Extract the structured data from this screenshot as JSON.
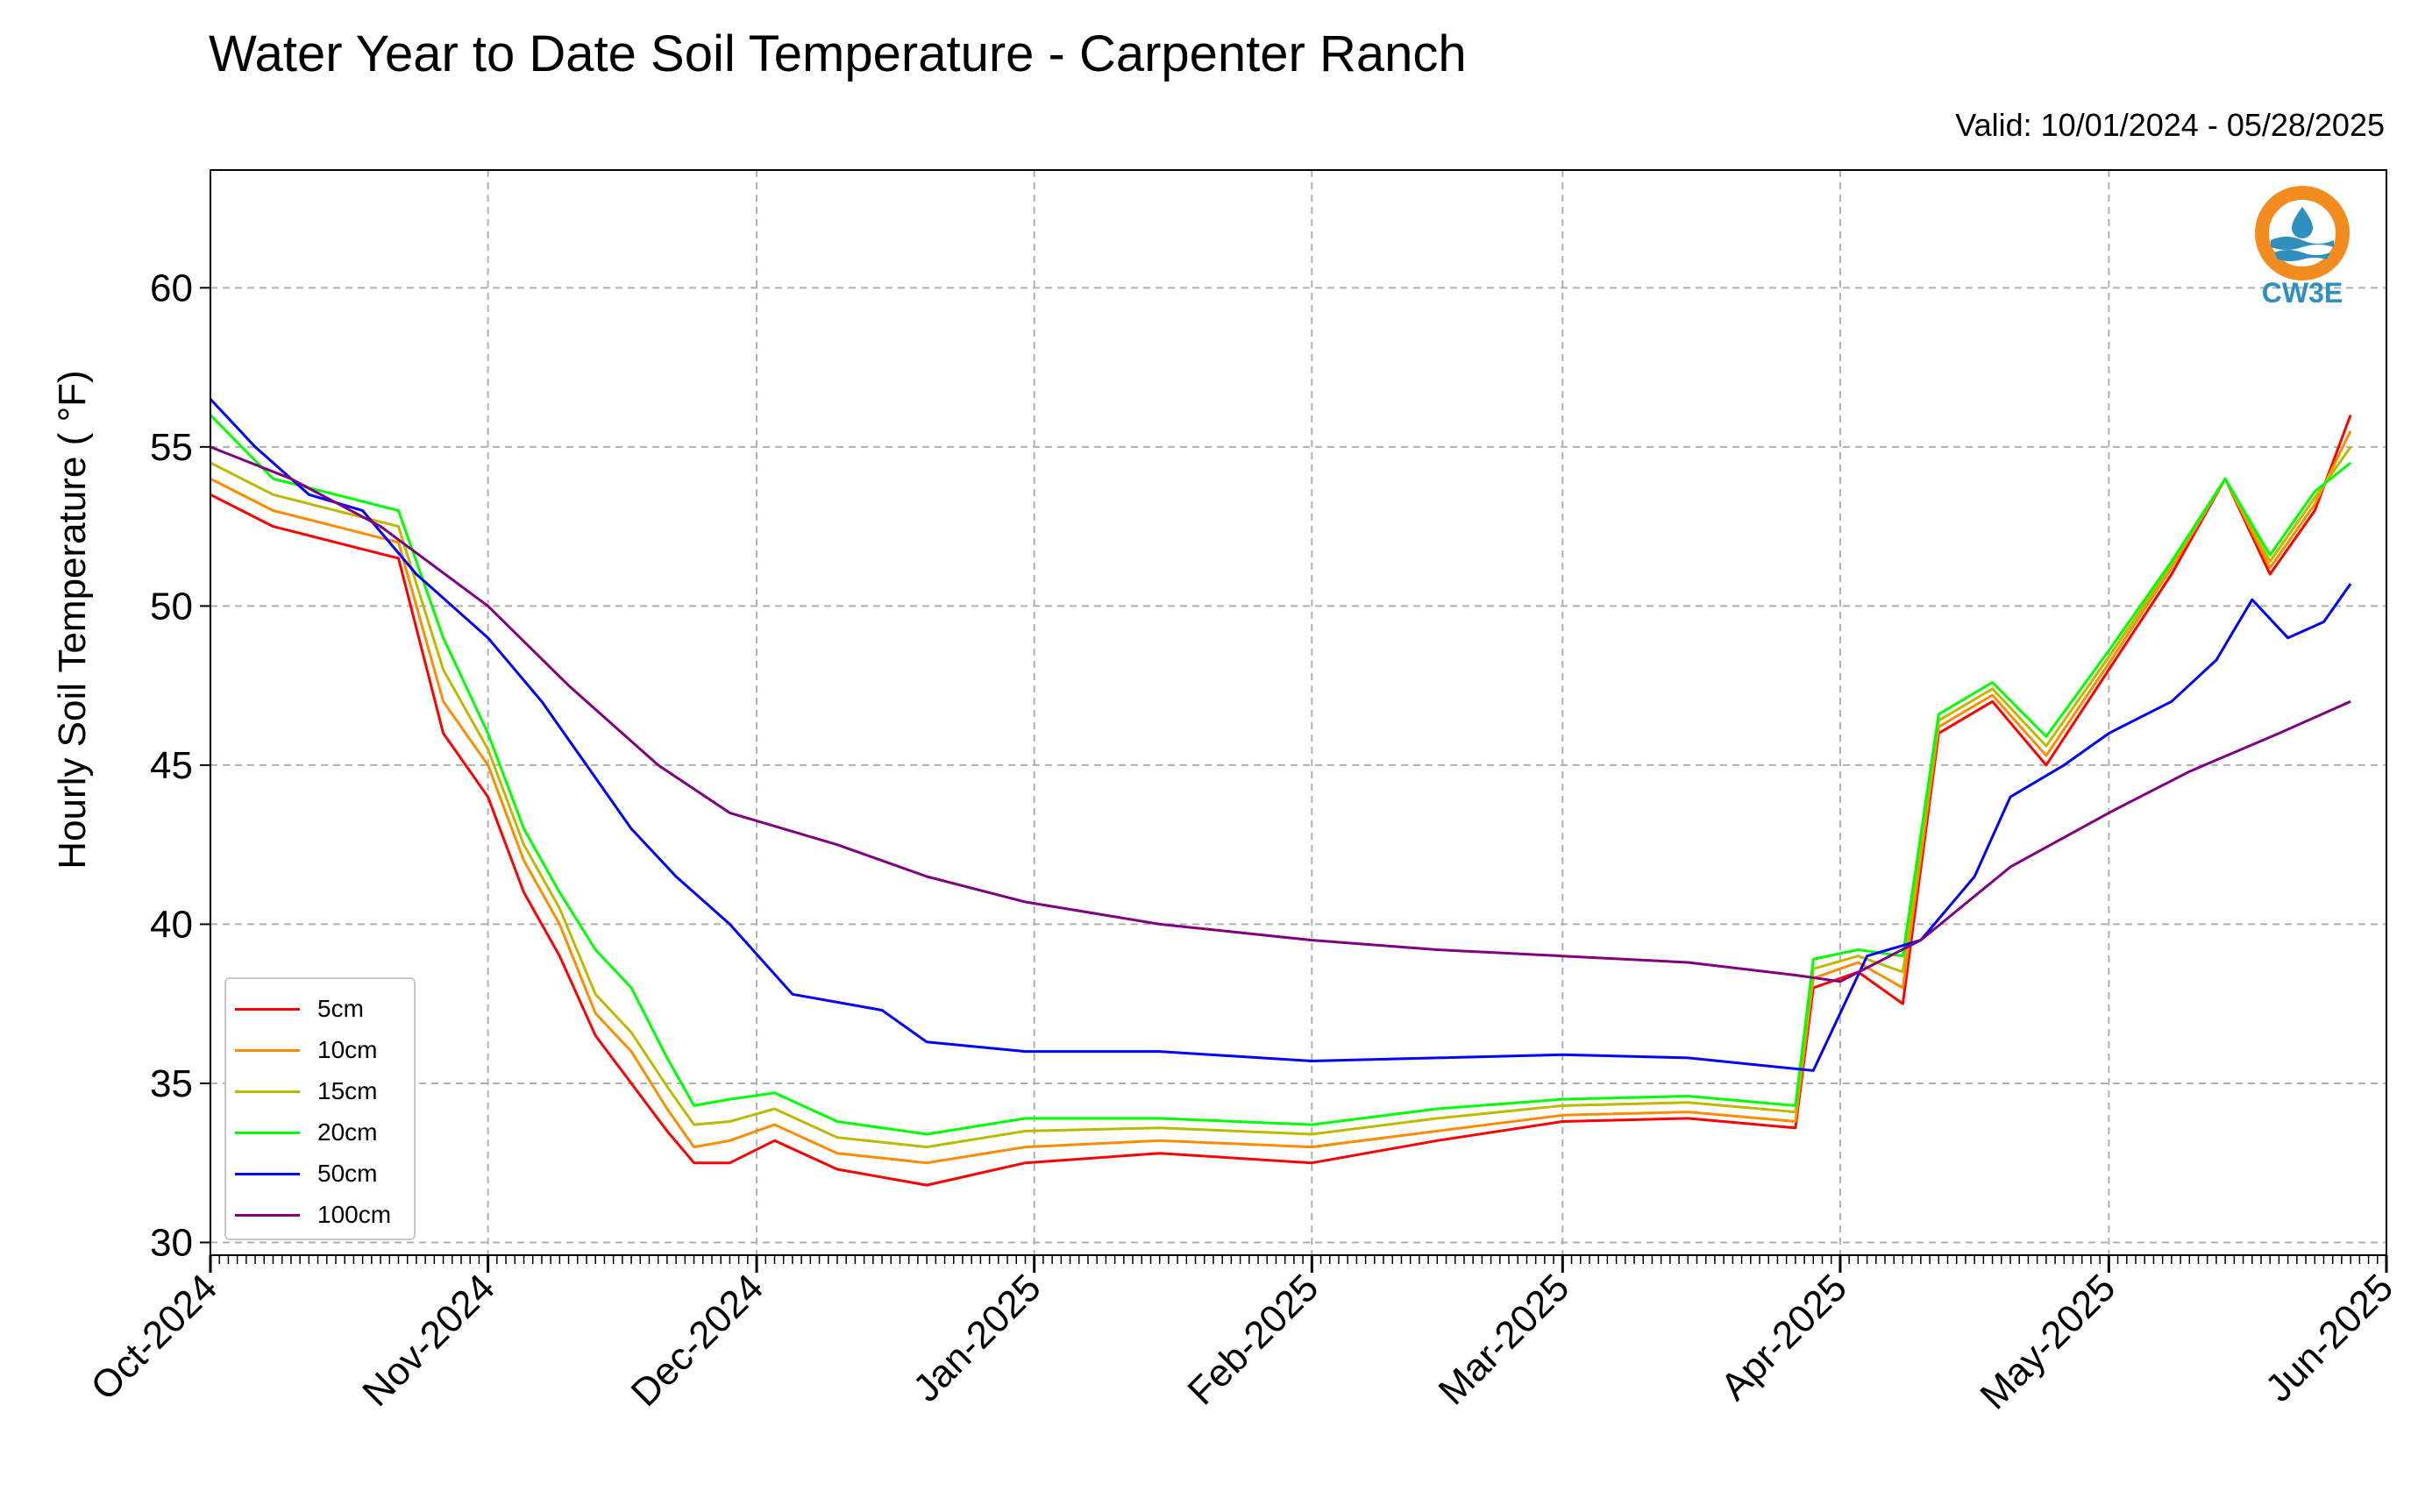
{
  "title": "Water Year to Date Soil Temperature - Carpenter Ranch",
  "valid_text": "Valid: 10/01/2024 - 05/28/2025",
  "logo_text": "CW3E",
  "chart_data": {
    "type": "line",
    "title": "Water Year to Date Soil Temperature - Carpenter Ranch",
    "xlabel": "",
    "ylabel": "Hourly Soil Temperature ( °F)",
    "ylim": [
      29.6,
      63.7
    ],
    "xlim": [
      "2024-10-01",
      "2025-06-01"
    ],
    "y_ticks": [
      30,
      35,
      40,
      45,
      50,
      55,
      60
    ],
    "x_ticks": [
      "2024-10-01",
      "2024-11-01",
      "2024-12-01",
      "2025-01-01",
      "2025-02-01",
      "2025-03-01",
      "2025-04-01",
      "2025-05-01",
      "2025-06-01"
    ],
    "x_tick_labels": [
      "Oct-2024",
      "Nov-2024",
      "Dec-2024",
      "Jan-2025",
      "Feb-2025",
      "Mar-2025",
      "Apr-2025",
      "May-2025",
      "Jun-2025"
    ],
    "grid": true,
    "legend_position": "bottom-left",
    "series": [
      {
        "name": "5cm",
        "color": "#ff0000",
        "x": [
          "2024-10-01",
          "2024-10-08",
          "2024-10-15",
          "2024-10-22",
          "2024-10-27",
          "2024-11-01",
          "2024-11-05",
          "2024-11-09",
          "2024-11-13",
          "2024-11-17",
          "2024-11-21",
          "2024-11-24",
          "2024-11-28",
          "2024-12-03",
          "2024-12-10",
          "2024-12-20",
          "2024-12-31",
          "2025-01-15",
          "2025-02-01",
          "2025-02-15",
          "2025-03-01",
          "2025-03-15",
          "2025-03-27",
          "2025-03-29",
          "2025-04-03",
          "2025-04-08",
          "2025-04-12",
          "2025-04-18",
          "2025-04-24",
          "2025-05-01",
          "2025-05-08",
          "2025-05-14",
          "2025-05-19",
          "2025-05-24",
          "2025-05-28"
        ],
        "y": [
          53.5,
          52.5,
          52,
          51.5,
          46,
          44,
          41,
          39,
          36.5,
          35,
          33.5,
          32.5,
          32.5,
          33.2,
          32.3,
          31.8,
          32.5,
          32.8,
          32.5,
          33.2,
          33.8,
          33.9,
          33.6,
          38,
          38.5,
          37.5,
          46,
          47,
          45,
          48,
          51,
          54,
          51,
          53,
          56
        ]
      },
      {
        "name": "10cm",
        "color": "#ff8c00",
        "x": [
          "2024-10-01",
          "2024-10-08",
          "2024-10-15",
          "2024-10-22",
          "2024-10-27",
          "2024-11-01",
          "2024-11-05",
          "2024-11-09",
          "2024-11-13",
          "2024-11-17",
          "2024-11-21",
          "2024-11-24",
          "2024-11-28",
          "2024-12-03",
          "2024-12-10",
          "2024-12-20",
          "2024-12-31",
          "2025-01-15",
          "2025-02-01",
          "2025-02-15",
          "2025-03-01",
          "2025-03-15",
          "2025-03-27",
          "2025-03-29",
          "2025-04-03",
          "2025-04-08",
          "2025-04-12",
          "2025-04-18",
          "2025-04-24",
          "2025-05-01",
          "2025-05-08",
          "2025-05-14",
          "2025-05-19",
          "2025-05-24",
          "2025-05-28"
        ],
        "y": [
          54,
          53,
          52.5,
          52,
          47,
          45,
          42,
          40,
          37.2,
          36,
          34.2,
          33,
          33.2,
          33.7,
          32.8,
          32.5,
          33,
          33.2,
          33,
          33.5,
          34,
          34.1,
          33.8,
          38.3,
          38.8,
          38,
          46.2,
          47.2,
          45.3,
          48.2,
          51.2,
          54,
          51.2,
          53.2,
          55.5
        ]
      },
      {
        "name": "15cm",
        "color": "#bdb800",
        "x": [
          "2024-10-01",
          "2024-10-08",
          "2024-10-15",
          "2024-10-22",
          "2024-10-27",
          "2024-11-01",
          "2024-11-05",
          "2024-11-09",
          "2024-11-13",
          "2024-11-17",
          "2024-11-21",
          "2024-11-24",
          "2024-11-28",
          "2024-12-03",
          "2024-12-10",
          "2024-12-20",
          "2024-12-31",
          "2025-01-15",
          "2025-02-01",
          "2025-02-15",
          "2025-03-01",
          "2025-03-15",
          "2025-03-27",
          "2025-03-29",
          "2025-04-03",
          "2025-04-08",
          "2025-04-12",
          "2025-04-18",
          "2025-04-24",
          "2025-05-01",
          "2025-05-08",
          "2025-05-14",
          "2025-05-19",
          "2025-05-24",
          "2025-05-28"
        ],
        "y": [
          54.5,
          53.5,
          53,
          52.5,
          48,
          45.5,
          42.5,
          40.5,
          37.8,
          36.6,
          34.9,
          33.7,
          33.8,
          34.2,
          33.3,
          33,
          33.5,
          33.6,
          33.4,
          33.9,
          34.3,
          34.4,
          34.1,
          38.6,
          39,
          38.5,
          46.4,
          47.4,
          45.6,
          48.4,
          51.3,
          54,
          51.4,
          53.4,
          55
        ]
      },
      {
        "name": "20cm",
        "color": "#00ff00",
        "x": [
          "2024-10-01",
          "2024-10-08",
          "2024-10-15",
          "2024-10-22",
          "2024-10-27",
          "2024-11-01",
          "2024-11-05",
          "2024-11-09",
          "2024-11-13",
          "2024-11-17",
          "2024-11-21",
          "2024-11-24",
          "2024-11-28",
          "2024-12-03",
          "2024-12-10",
          "2024-12-20",
          "2024-12-31",
          "2025-01-15",
          "2025-02-01",
          "2025-02-15",
          "2025-03-01",
          "2025-03-15",
          "2025-03-27",
          "2025-03-29",
          "2025-04-03",
          "2025-04-08",
          "2025-04-12",
          "2025-04-18",
          "2025-04-24",
          "2025-05-01",
          "2025-05-08",
          "2025-05-14",
          "2025-05-19",
          "2025-05-24",
          "2025-05-28"
        ],
        "y": [
          56,
          54,
          53.5,
          53,
          49,
          46,
          43,
          41,
          39.2,
          38,
          35.8,
          34.3,
          34.5,
          34.7,
          33.8,
          33.4,
          33.9,
          33.9,
          33.7,
          34.2,
          34.5,
          34.6,
          34.3,
          38.9,
          39.2,
          39,
          46.6,
          47.6,
          45.9,
          48.6,
          51.4,
          54,
          51.6,
          53.6,
          54.5
        ]
      },
      {
        "name": "50cm",
        "color": "#0000ff",
        "x": [
          "2024-10-01",
          "2024-10-06",
          "2024-10-12",
          "2024-10-18",
          "2024-10-24",
          "2024-11-01",
          "2024-11-07",
          "2024-11-12",
          "2024-11-17",
          "2024-11-22",
          "2024-11-28",
          "2024-12-05",
          "2024-12-15",
          "2024-12-20",
          "2024-12-31",
          "2025-01-15",
          "2025-02-01",
          "2025-02-15",
          "2025-03-01",
          "2025-03-15",
          "2025-03-29",
          "2025-04-04",
          "2025-04-10",
          "2025-04-16",
          "2025-04-20",
          "2025-04-26",
          "2025-05-01",
          "2025-05-08",
          "2025-05-13",
          "2025-05-17",
          "2025-05-21",
          "2025-05-25",
          "2025-05-28"
        ],
        "y": [
          56.5,
          55,
          53.5,
          53,
          51,
          49,
          47,
          45,
          43,
          41.5,
          40,
          37.8,
          37.3,
          36.3,
          36,
          36,
          35.7,
          35.8,
          35.9,
          35.8,
          35.4,
          39,
          39.5,
          41.5,
          44,
          45,
          46,
          47,
          48.3,
          50.2,
          49,
          49.5,
          50.7
        ]
      },
      {
        "name": "100cm",
        "color": "#800080",
        "x": [
          "2024-10-01",
          "2024-10-10",
          "2024-10-20",
          "2024-11-01",
          "2024-11-10",
          "2024-11-20",
          "2024-11-28",
          "2024-12-10",
          "2024-12-20",
          "2024-12-31",
          "2025-01-15",
          "2025-02-01",
          "2025-02-15",
          "2025-03-01",
          "2025-03-15",
          "2025-03-27",
          "2025-04-01",
          "2025-04-10",
          "2025-04-20",
          "2025-05-01",
          "2025-05-10",
          "2025-05-20",
          "2025-05-28"
        ],
        "y": [
          55,
          54,
          52.5,
          50,
          47.5,
          45,
          43.5,
          42.5,
          41.5,
          40.7,
          40,
          39.5,
          39.2,
          39,
          38.8,
          38.4,
          38.2,
          39.5,
          41.8,
          43.5,
          44.8,
          46,
          47
        ]
      }
    ]
  }
}
